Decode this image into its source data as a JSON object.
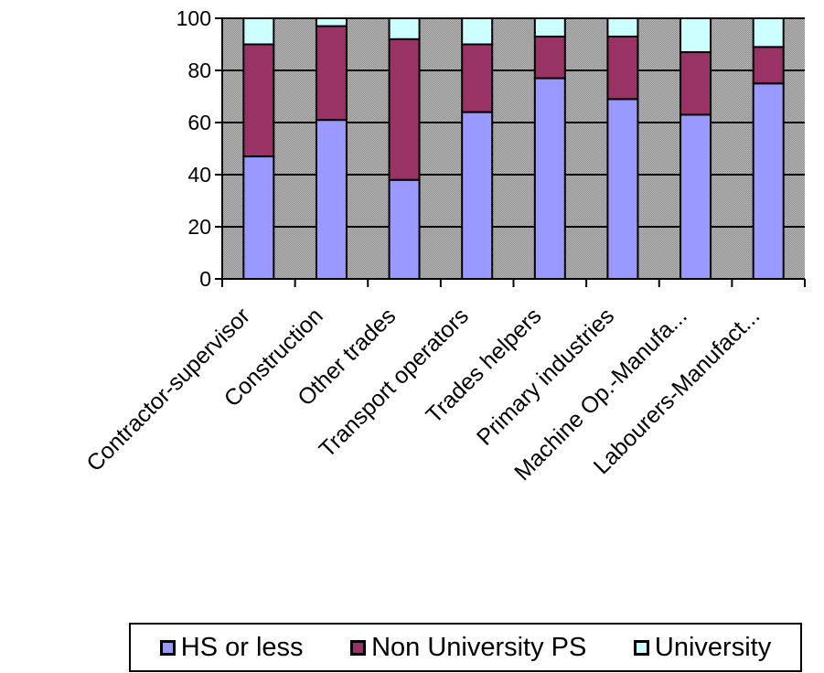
{
  "chart_data": {
    "type": "bar",
    "stacked": true,
    "categories": [
      "Contractor-supervisor",
      "Construction",
      "Other trades",
      "Transport operators",
      "Trades helpers",
      "Primary industries",
      "Machine Op.-Manufa...",
      "Labourers-Manufact..."
    ],
    "series": [
      {
        "name": "HS or less",
        "color": "#9999ff",
        "values": [
          47,
          61,
          38,
          64,
          77,
          69,
          63,
          75
        ]
      },
      {
        "name": "Non University PS",
        "color": "#993366",
        "values": [
          43,
          36,
          54,
          26,
          16,
          24,
          24,
          14
        ]
      },
      {
        "name": "University",
        "color": "#ccffff",
        "values": [
          10,
          3,
          8,
          10,
          7,
          7,
          13,
          11
        ]
      }
    ],
    "yticks": [
      "0",
      "20",
      "40",
      "60",
      "80",
      "100"
    ],
    "ylim": [
      0,
      100
    ],
    "grid": true,
    "legend_position": "bottom"
  }
}
